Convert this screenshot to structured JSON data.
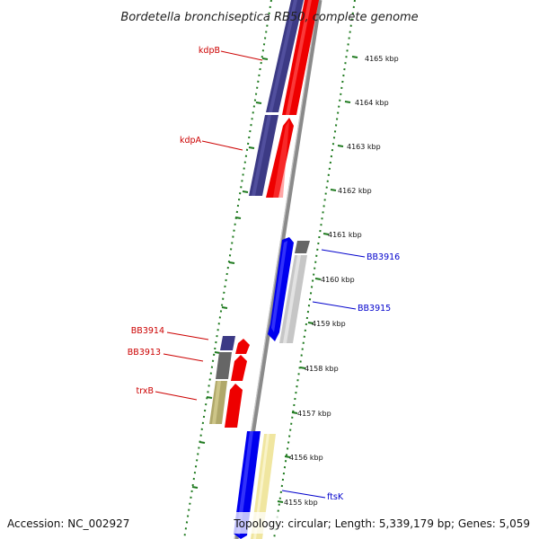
{
  "title": "Bordetella bronchiseptica RB50, complete genome",
  "footer": {
    "accession": "Accession: NC_002927",
    "summary": "Topology: circular; Length: 5,339,179 bp; Genes: 5,059"
  },
  "colors": {
    "forward_label": "#cc0000",
    "reverse_label": "#0000cc",
    "backbone": "#8a8a8a",
    "tick_track": "#1f7a1f"
  },
  "ruler": {
    "ticks": [
      {
        "label": "4165 kbp"
      },
      {
        "label": "4164 kbp"
      },
      {
        "label": "4163 kbp"
      },
      {
        "label": "4162 kbp"
      },
      {
        "label": "4161 kbp"
      },
      {
        "label": "4160 kbp"
      },
      {
        "label": "4159 kbp"
      },
      {
        "label": "4158 kbp"
      },
      {
        "label": "4157 kbp"
      },
      {
        "label": "4156 kbp"
      },
      {
        "label": "4155 kbp"
      }
    ]
  },
  "gene_labels": [
    {
      "name": "kdpB",
      "strand": "forward"
    },
    {
      "name": "kdpA",
      "strand": "forward"
    },
    {
      "name": "BB3914",
      "strand": "forward"
    },
    {
      "name": "BB3913",
      "strand": "forward"
    },
    {
      "name": "trxB",
      "strand": "forward"
    },
    {
      "name": "BB3916",
      "strand": "reverse"
    },
    {
      "name": "BB3915",
      "strand": "reverse"
    },
    {
      "name": "ftsK",
      "strand": "reverse"
    }
  ]
}
